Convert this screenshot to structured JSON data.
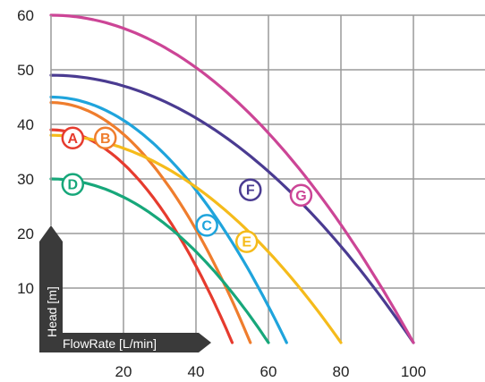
{
  "chart_data": {
    "type": "line",
    "xlabel": "FlowRate [L/min]",
    "ylabel": "Head [m]",
    "xlim": [
      0,
      120
    ],
    "ylim": [
      0,
      60
    ],
    "x_ticks": [
      20,
      40,
      60,
      80,
      100
    ],
    "y_ticks": [
      10,
      20,
      30,
      40,
      50,
      60
    ],
    "grid": true,
    "series": [
      {
        "name": "A",
        "color": "#e63b2e",
        "y0": 39,
        "x_end": 50,
        "label_x": 6,
        "label_y": 37.5
      },
      {
        "name": "B",
        "color": "#ef7d2d",
        "y0": 44,
        "x_end": 55,
        "label_x": 15,
        "label_y": 37.5
      },
      {
        "name": "C",
        "color": "#1fa4dc",
        "y0": 45,
        "x_end": 65,
        "label_x": 43,
        "label_y": 21.5
      },
      {
        "name": "D",
        "color": "#17a77a",
        "y0": 30,
        "x_end": 60,
        "label_x": 6,
        "label_y": 29.0
      },
      {
        "name": "E",
        "color": "#f5bb1b",
        "y0": 38,
        "x_end": 80,
        "label_x": 54,
        "label_y": 18.5
      },
      {
        "name": "F",
        "color": "#4a3b91",
        "y0": 49,
        "x_end": 100,
        "label_x": 55,
        "label_y": 28.0
      },
      {
        "name": "G",
        "color": "#cc4596",
        "y0": 60,
        "x_end": 100,
        "label_x": 69,
        "label_y": 27.0
      }
    ]
  }
}
